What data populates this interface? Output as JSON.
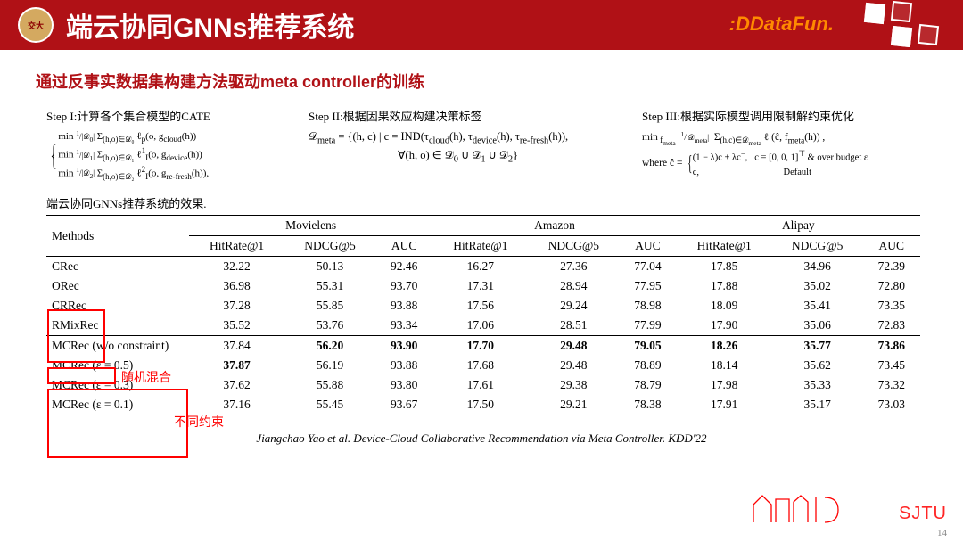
{
  "header": {
    "title": "端云协同GNNs推荐系统",
    "datafun": "DataFun",
    "header_bg": "#b01116"
  },
  "subtitle": "通过反事实数据集构建方法驱动meta controller的训练",
  "steps": {
    "s1": {
      "label": "Step I:计算各个集合模型的CATE"
    },
    "s2": {
      "label": "Step II:根据因果效应构建决策标签"
    },
    "s3": {
      "label": "Step III:根据实际模型调用限制解约束优化"
    }
  },
  "table": {
    "caption": "端云协同GNNs推荐系统的效果.",
    "methods_header": "Methods",
    "groups": [
      "Movielens",
      "Amazon",
      "Alipay"
    ],
    "metrics": [
      "HitRate@1",
      "NDCG@5",
      "AUC"
    ],
    "rows": [
      {
        "method": "CRec",
        "vals": [
          "32.22",
          "50.13",
          "92.46",
          "16.27",
          "27.36",
          "77.04",
          "17.85",
          "34.96",
          "72.39"
        ]
      },
      {
        "method": "ORec",
        "vals": [
          "36.98",
          "55.31",
          "93.70",
          "17.31",
          "28.94",
          "77.95",
          "17.88",
          "35.02",
          "72.80"
        ]
      },
      {
        "method": "CRRec",
        "vals": [
          "37.28",
          "55.85",
          "93.88",
          "17.56",
          "29.24",
          "78.98",
          "18.09",
          "35.41",
          "73.35"
        ]
      },
      {
        "method": "RMixRec",
        "vals": [
          "35.52",
          "53.76",
          "93.34",
          "17.06",
          "28.51",
          "77.99",
          "17.90",
          "35.06",
          "72.83"
        ]
      }
    ],
    "rows2": [
      {
        "method": "MCRec (w/o constraint)",
        "vals": [
          "37.84",
          "56.20",
          "93.90",
          "17.70",
          "29.48",
          "79.05",
          "18.26",
          "35.77",
          "73.86"
        ],
        "bold": [
          false,
          true,
          true,
          true,
          true,
          true,
          true,
          true,
          true
        ]
      },
      {
        "method": "MCRec (ε = 0.5)",
        "vals": [
          "37.87",
          "56.19",
          "93.88",
          "17.68",
          "29.48",
          "78.89",
          "18.14",
          "35.62",
          "73.45"
        ],
        "bold": [
          true,
          false,
          false,
          false,
          false,
          false,
          false,
          false,
          false
        ]
      },
      {
        "method": "MCRec (ε = 0.3)",
        "vals": [
          "37.62",
          "55.88",
          "93.80",
          "17.61",
          "29.38",
          "78.79",
          "17.98",
          "35.33",
          "73.32"
        ],
        "bold": [
          false,
          false,
          false,
          false,
          false,
          false,
          false,
          false,
          false
        ]
      },
      {
        "method": "MCRec (ε = 0.1)",
        "vals": [
          "37.16",
          "55.45",
          "93.67",
          "17.50",
          "29.21",
          "78.38",
          "17.91",
          "35.17",
          "73.03"
        ],
        "bold": [
          false,
          false,
          false,
          false,
          false,
          false,
          false,
          false,
          false
        ]
      }
    ]
  },
  "annotations": {
    "random_mix": "随机混合",
    "diff_constraint": "不同约束"
  },
  "citation": "Jiangchao Yao et al. Device-Cloud Collaborative Recommendation via Meta Controller. KDD'22",
  "page": "14",
  "sjtu": "SJTU"
}
